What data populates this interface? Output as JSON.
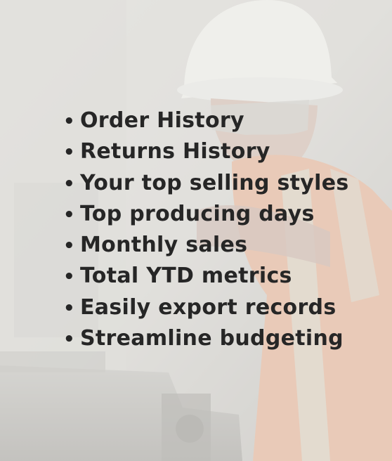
{
  "features": [
    "Order History",
    "Returns History",
    "Your top selling styles",
    "Top producing days",
    "Monthly sales",
    "Total YTD metrics",
    "Easily export records",
    "Streamline budgeting"
  ],
  "bullet_glyph": "•",
  "colors": {
    "text": "#262626",
    "hard_hat": "#f4f3f0",
    "safety_vest": "#e7a27d",
    "background": "#e9e8e6"
  }
}
